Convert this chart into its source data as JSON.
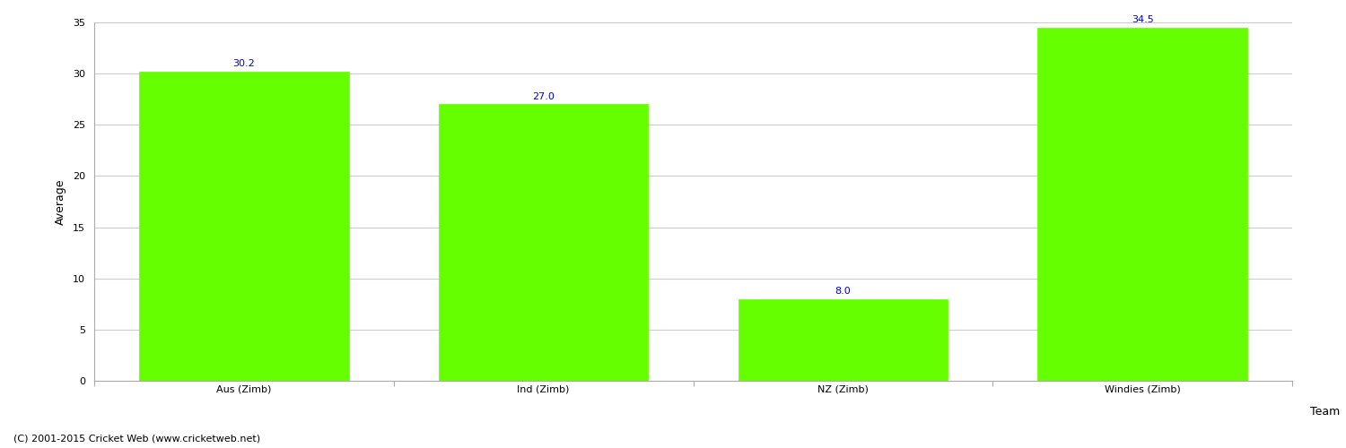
{
  "categories": [
    "Aus (Zimb)",
    "Ind (Zimb)",
    "NZ (Zimb)",
    "Windies (Zimb)"
  ],
  "values": [
    30.2,
    27.0,
    8.0,
    34.5
  ],
  "bar_color": "#66ff00",
  "label_color": "#0000cc",
  "ylabel": "Average",
  "xlabel": "Team",
  "ylim": [
    0,
    35
  ],
  "yticks": [
    0,
    5,
    10,
    15,
    20,
    25,
    30,
    35
  ],
  "grid_color": "#cccccc",
  "background_color": "#ffffff",
  "footer_text": "(C) 2001-2015 Cricket Web (www.cricketweb.net)",
  "label_fontsize": 8,
  "axis_label_fontsize": 9,
  "tick_fontsize": 8,
  "footer_fontsize": 8,
  "bar_width": 0.7
}
